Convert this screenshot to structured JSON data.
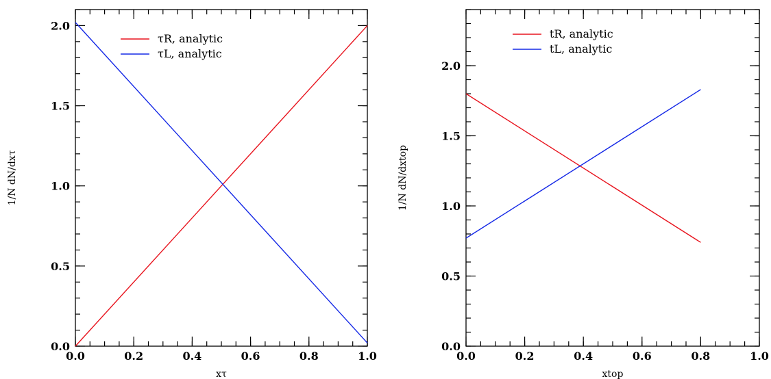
{
  "colors": {
    "red": "#e8141e",
    "blue": "#1428e6"
  },
  "chart_data": [
    {
      "type": "line",
      "xlabel": "xτ",
      "ylabel": "1/N dN/dxτ",
      "xlim": [
        0.0,
        1.0
      ],
      "ylim": [
        0.0,
        2.1
      ],
      "xticks": [
        0.0,
        0.2,
        0.4,
        0.6,
        0.8,
        1.0
      ],
      "yticks": [
        0.0,
        0.5,
        1.0,
        1.5,
        2.0
      ],
      "xtick_labels": [
        "0.0",
        "0.2",
        "0.4",
        "0.6",
        "0.8",
        "1.0"
      ],
      "ytick_labels": [
        "0.0",
        "0.5",
        "1.0",
        "1.5",
        "2.0"
      ],
      "x_minor_step": 0.05,
      "y_minor_step": 0.1,
      "legend_position": "top-center",
      "series": [
        {
          "name": "τR, analytic",
          "color": "red",
          "x": [
            0.0,
            1.0
          ],
          "y": [
            0.0,
            2.0
          ]
        },
        {
          "name": "τL, analytic",
          "color": "blue",
          "x": [
            0.0,
            1.0
          ],
          "y": [
            2.02,
            0.02
          ]
        }
      ]
    },
    {
      "type": "line",
      "xlabel": "xtop",
      "ylabel": "1/N dN/dxtop",
      "xlim": [
        0.0,
        1.0
      ],
      "ylim": [
        0.0,
        2.4
      ],
      "xticks": [
        0.0,
        0.2,
        0.4,
        0.6,
        0.8,
        1.0
      ],
      "yticks": [
        0.0,
        0.5,
        1.0,
        1.5,
        2.0
      ],
      "xtick_labels": [
        "0.0",
        "0.2",
        "0.4",
        "0.6",
        "0.8",
        "1.0"
      ],
      "ytick_labels": [
        "0.0",
        "0.5",
        "1.0",
        "1.5",
        "2.0"
      ],
      "x_minor_step": 0.05,
      "y_minor_step": 0.1,
      "legend_position": "top-center",
      "series": [
        {
          "name": "tR, analytic",
          "color": "red",
          "x": [
            0.0,
            0.8
          ],
          "y": [
            1.8,
            0.74
          ]
        },
        {
          "name": "tL, analytic",
          "color": "blue",
          "x": [
            0.0,
            0.8
          ],
          "y": [
            0.77,
            1.83
          ]
        }
      ]
    }
  ]
}
